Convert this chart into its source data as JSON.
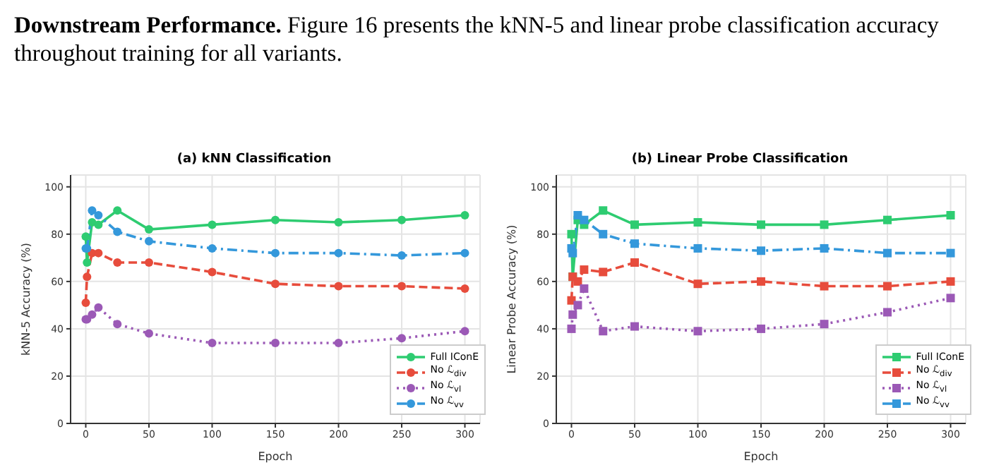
{
  "chart_data": [
    {
      "type": "line",
      "title": "(a) kNN Classification",
      "xlabel": "Epoch",
      "ylabel": "kNN-5 Accuracy (%)",
      "annotations": [
        "Downstream Performance. Figure 16 presents the kNN-5 and linear probe classification accuracy throughout training for all variants."
      ],
      "x": [
        0,
        1,
        5,
        10,
        25,
        50,
        100,
        150,
        200,
        250,
        300
      ],
      "series": [
        {
          "name": "Full IConE",
          "color": "#2ecc71",
          "line_style": "solid",
          "values": [
            79,
            68,
            85,
            84,
            90,
            82,
            84,
            86,
            85,
            86,
            88
          ]
        },
        {
          "name": "No ℒ$_{div}$",
          "color": "#e74c3c",
          "line_style": "dashed",
          "values": [
            51,
            62,
            72,
            72,
            68,
            68,
            64,
            59,
            58,
            58,
            57
          ]
        },
        {
          "name": "No ℒ$_{vl}$",
          "color": "#9b59b6",
          "line_style": "dotted",
          "values": [
            44,
            44,
            46,
            49,
            42,
            38,
            34,
            34,
            34,
            36,
            39
          ]
        },
        {
          "name": "No ℒ$_{vv}$",
          "color": "#3498db",
          "line_style": "dashdot",
          "values": [
            74,
            74,
            90,
            88,
            81,
            77,
            74,
            72,
            72,
            71,
            72
          ]
        }
      ],
      "xlim": [
        -12,
        312
      ],
      "xticks": [
        0,
        50,
        100,
        150,
        200,
        250,
        300
      ],
      "ylim": [
        0,
        105
      ],
      "yticks": [
        0,
        20,
        40,
        60,
        80,
        100
      ],
      "grid": true,
      "legend": "bottom right",
      "marker": "circle"
    },
    {
      "type": "line",
      "title": "(b) Linear Probe Classification",
      "xlabel": "Epoch",
      "ylabel": "Linear Probe Accuracy (%)",
      "x": [
        0,
        1,
        5,
        10,
        25,
        50,
        100,
        150,
        200,
        250,
        300
      ],
      "series": [
        {
          "name": "Full IConE",
          "color": "#2ecc71",
          "line_style": "solid",
          "values": [
            80,
            62,
            86,
            84,
            90,
            84,
            85,
            84,
            84,
            86,
            88
          ]
        },
        {
          "name": "No ℒ$_{div}$",
          "color": "#e74c3c",
          "line_style": "dashed",
          "values": [
            52,
            62,
            60,
            65,
            64,
            68,
            59,
            60,
            58,
            58,
            60
          ]
        },
        {
          "name": "No ℒ$_{vl}$",
          "color": "#9b59b6",
          "line_style": "dotted",
          "values": [
            40,
            46,
            50,
            57,
            39,
            41,
            39,
            40,
            42,
            47,
            53
          ]
        },
        {
          "name": "No ℒ$_{vv}$",
          "color": "#3498db",
          "line_style": "dashdot",
          "values": [
            74,
            72,
            88,
            86,
            80,
            76,
            74,
            73,
            74,
            72,
            72
          ]
        }
      ],
      "xlim": [
        -12,
        312
      ],
      "xticks": [
        0,
        50,
        100,
        150,
        200,
        250,
        300
      ],
      "ylim": [
        0,
        105
      ],
      "yticks": [
        0,
        20,
        40,
        60,
        80,
        100
      ],
      "grid": true,
      "legend": "bottom right",
      "marker": "square"
    }
  ]
}
